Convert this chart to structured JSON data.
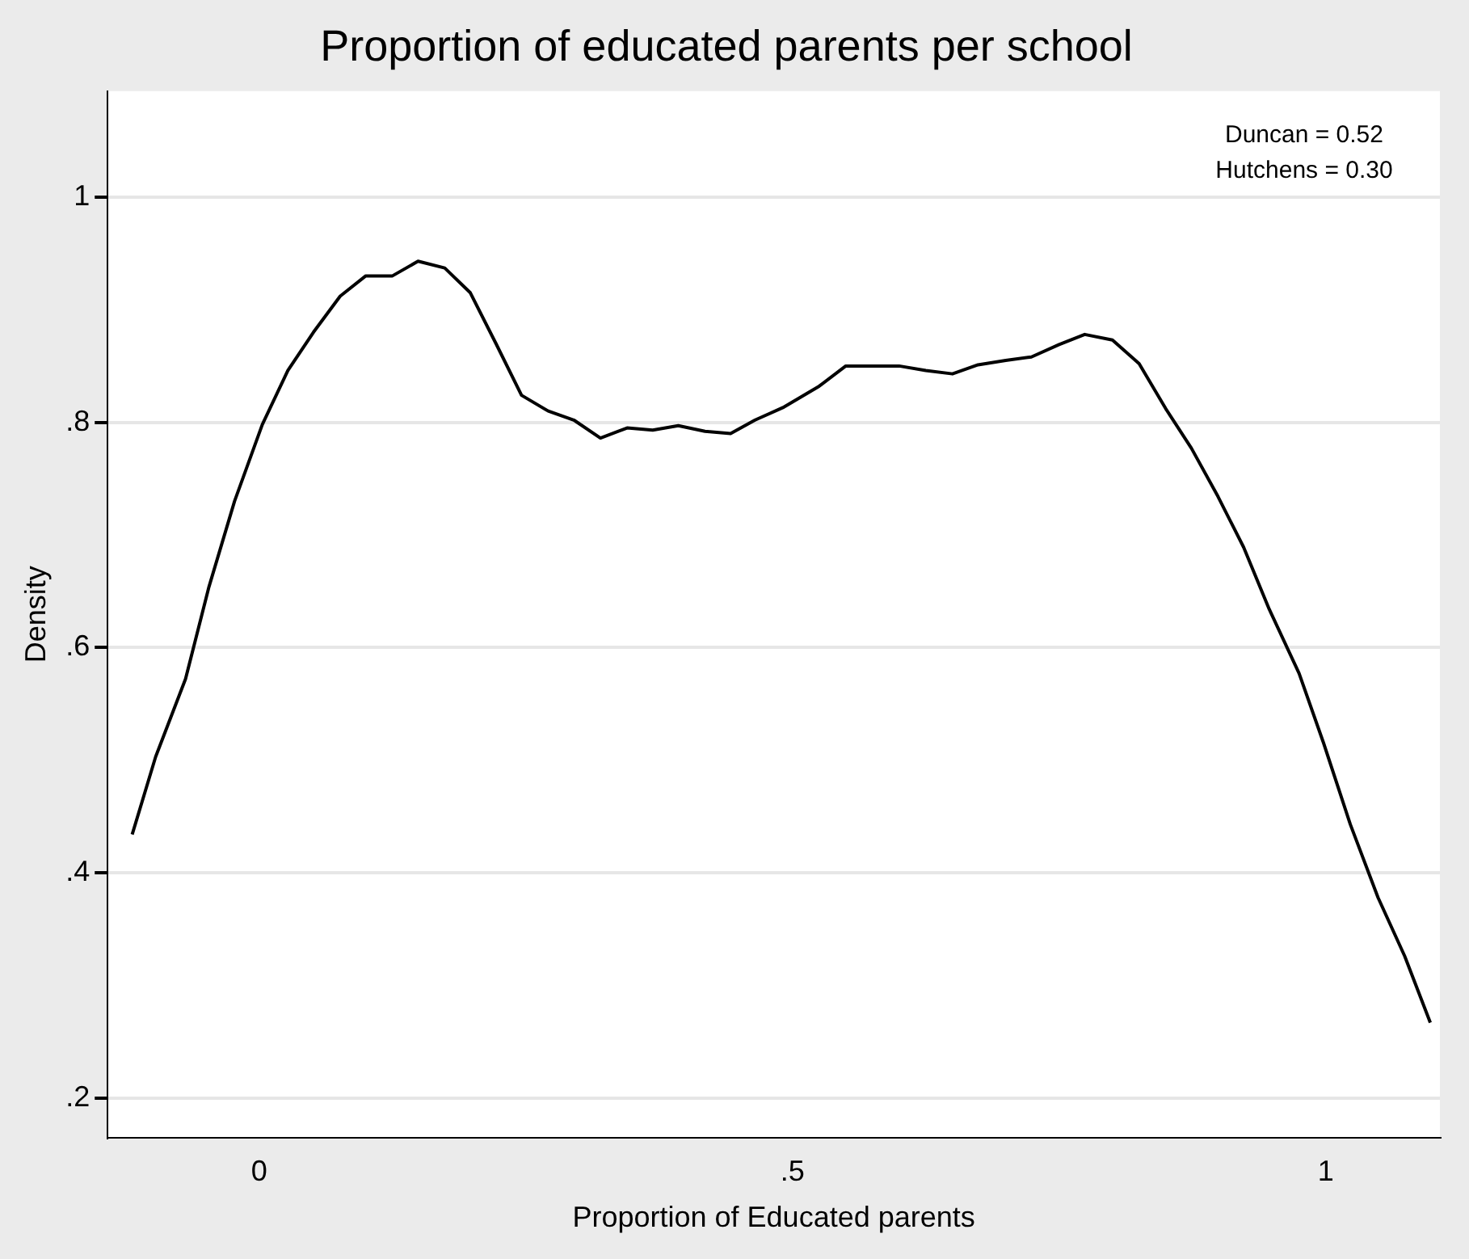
{
  "chart_data": {
    "type": "line",
    "title": "Proportion of educated parents per school",
    "xlabel": "Proportion of Educated parents",
    "ylabel": "Density",
    "annotations": [
      "Duncan = 0.52",
      "Hutchens = 0.30"
    ],
    "x": [
      -0.119,
      -0.097,
      -0.069,
      -0.047,
      -0.023,
      0.003,
      0.027,
      0.051,
      0.076,
      0.1,
      0.125,
      0.149,
      0.174,
      0.198,
      0.222,
      0.246,
      0.271,
      0.295,
      0.32,
      0.345,
      0.369,
      0.393,
      0.418,
      0.442,
      0.465,
      0.491,
      0.525,
      0.55,
      0.574,
      0.6,
      0.625,
      0.65,
      0.674,
      0.7,
      0.724,
      0.75,
      0.774,
      0.8,
      0.825,
      0.85,
      0.874,
      0.899,
      0.923,
      0.947,
      0.975,
      0.998,
      1.023,
      1.049,
      1.074,
      1.098
    ],
    "series": [
      {
        "color": "#000000",
        "values": [
          0.434,
          0.503,
          0.572,
          0.654,
          0.73,
          0.798,
          0.846,
          0.88,
          0.912,
          0.93,
          0.93,
          0.943,
          0.937,
          0.915,
          0.87,
          0.824,
          0.81,
          0.802,
          0.786,
          0.795,
          0.793,
          0.797,
          0.792,
          0.79,
          0.802,
          0.813,
          0.832,
          0.85,
          0.85,
          0.85,
          0.846,
          0.843,
          0.851,
          0.855,
          0.858,
          0.869,
          0.878,
          0.873,
          0.852,
          0.812,
          0.777,
          0.734,
          0.689,
          0.634,
          0.577,
          0.515,
          0.443,
          0.378,
          0.326,
          0.267
        ]
      }
    ],
    "xlim": [
      -0.142,
      1.107
    ],
    "ylim": [
      0.165,
      1.094
    ],
    "xticks": [
      0,
      {
        "value": 0.5,
        "label": ".5"
      },
      1
    ],
    "yticks": [
      {
        "value": 0.2,
        "label": ".2"
      },
      {
        "value": 0.4,
        "label": ".4"
      },
      {
        "value": 0.6,
        "label": ".6"
      },
      {
        "value": 0.8,
        "label": ".8"
      },
      1
    ],
    "grid": "y",
    "legend": false,
    "marker": "none",
    "line_style": "solid"
  }
}
